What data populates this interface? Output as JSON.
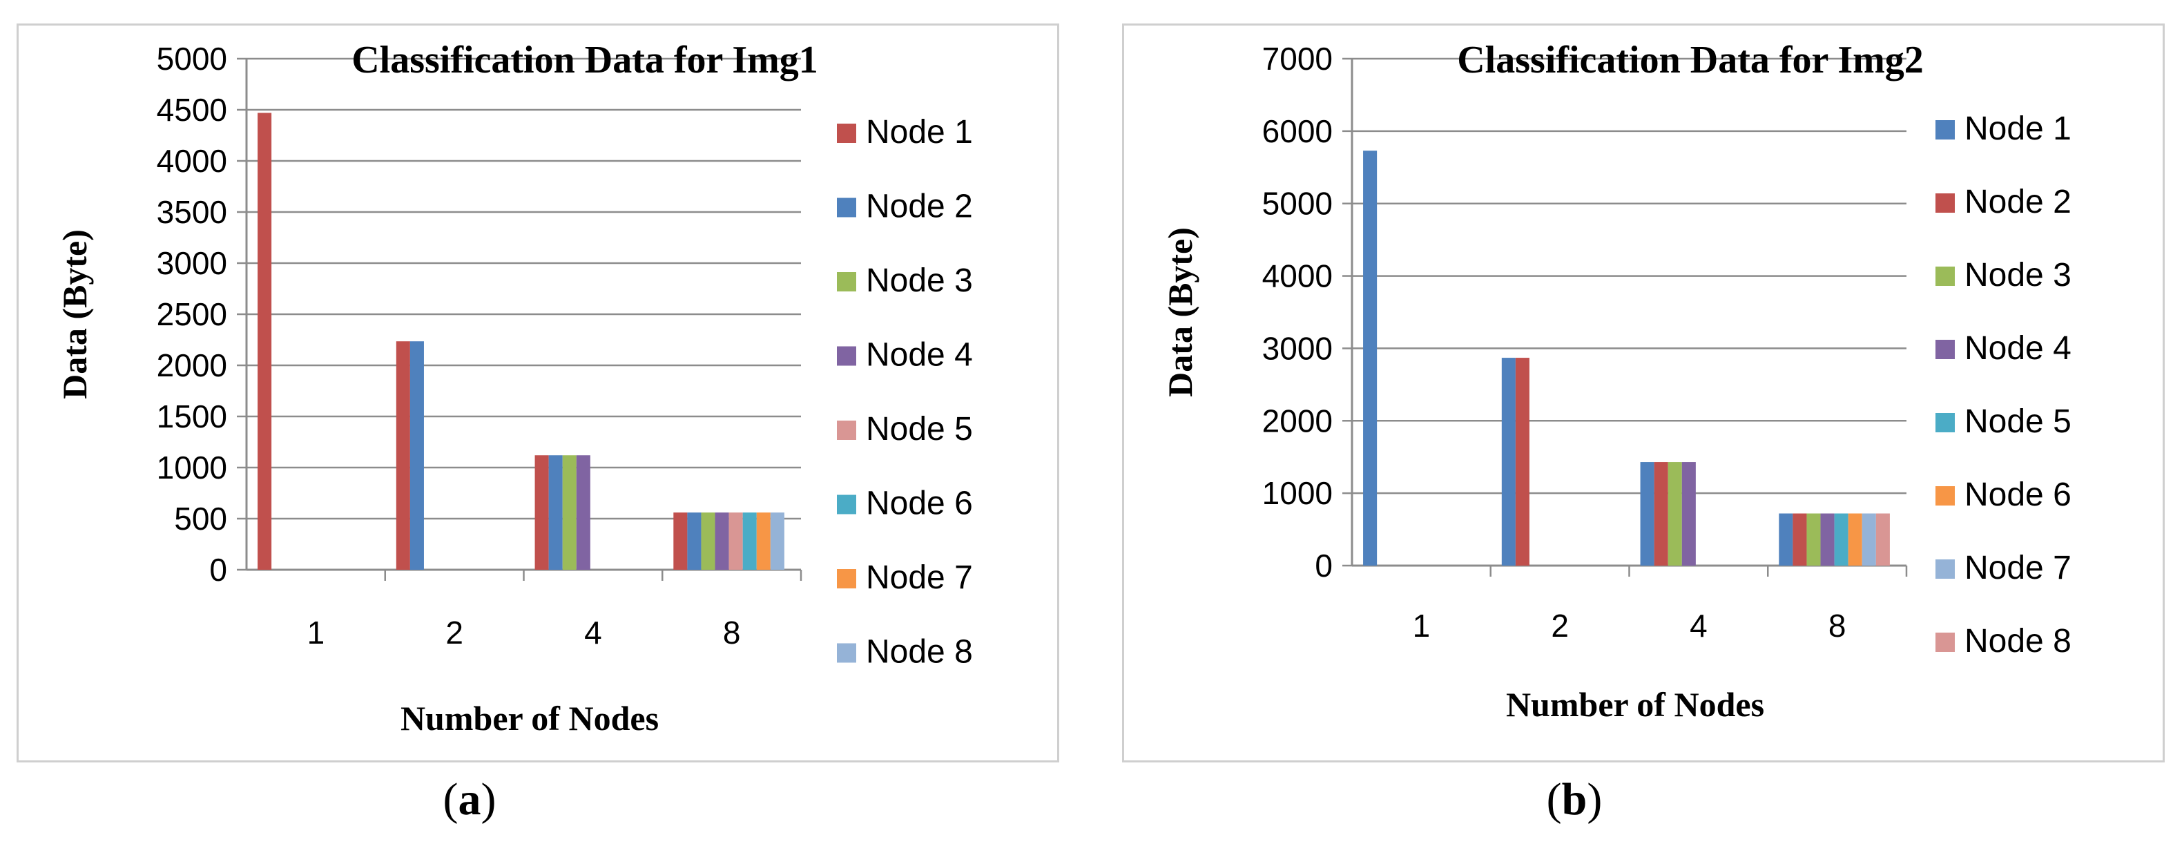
{
  "captions": {
    "a": {
      "open": "(",
      "letter": "a",
      "close": ")"
    },
    "b": {
      "open": "(",
      "letter": "b",
      "close": ")"
    }
  },
  "colors": {
    "red": "#C0504D",
    "blue": "#4F81BD",
    "green": "#9BBB59",
    "purple": "#8064A2",
    "pink": "#D99694",
    "teal": "#4BACC6",
    "orange": "#F79646",
    "lightblue": "#95B3D7"
  },
  "chart_data": [
    {
      "type": "bar",
      "title": "Classification Data for Img1",
      "xlabel": "Number of Nodes",
      "ylabel": "Data (Byte)",
      "ylim": [
        0,
        5000
      ],
      "yticks": [
        0,
        500,
        1000,
        1500,
        2000,
        2500,
        3000,
        3500,
        4000,
        4500,
        5000
      ],
      "grid": true,
      "legend": "right",
      "categories": [
        "1",
        "2",
        "4",
        "8"
      ],
      "series": [
        {
          "name": "Node 1",
          "color": "#C0504D",
          "values": [
            4470,
            2235,
            1120,
            560
          ]
        },
        {
          "name": "Node 2",
          "color": "#4F81BD",
          "values": [
            0,
            2235,
            1120,
            560
          ]
        },
        {
          "name": "Node 3",
          "color": "#9BBB59",
          "values": [
            0,
            0,
            1120,
            560
          ]
        },
        {
          "name": "Node 4",
          "color": "#8064A2",
          "values": [
            0,
            0,
            1120,
            560
          ]
        },
        {
          "name": "Node 5",
          "color": "#D99694",
          "values": [
            0,
            0,
            0,
            560
          ]
        },
        {
          "name": "Node 6",
          "color": "#4BACC6",
          "values": [
            0,
            0,
            0,
            560
          ]
        },
        {
          "name": "Node 7",
          "color": "#F79646",
          "values": [
            0,
            0,
            0,
            560
          ]
        },
        {
          "name": "Node 8",
          "color": "#95B3D7",
          "values": [
            0,
            0,
            0,
            560
          ]
        }
      ]
    },
    {
      "type": "bar",
      "title": "Classification Data for Img2",
      "xlabel": "Number of Nodes",
      "ylabel": "Data (Byte)",
      "ylim": [
        0,
        7000
      ],
      "yticks": [
        0,
        1000,
        2000,
        3000,
        4000,
        5000,
        6000,
        7000
      ],
      "grid": true,
      "legend": "right",
      "categories": [
        "1",
        "2",
        "4",
        "8"
      ],
      "series": [
        {
          "name": "Node 1",
          "color": "#4F81BD",
          "values": [
            5730,
            2870,
            1430,
            720
          ]
        },
        {
          "name": "Node 2",
          "color": "#C0504D",
          "values": [
            0,
            2870,
            1430,
            720
          ]
        },
        {
          "name": "Node 3",
          "color": "#9BBB59",
          "values": [
            0,
            0,
            1430,
            720
          ]
        },
        {
          "name": "Node 4",
          "color": "#8064A2",
          "values": [
            0,
            0,
            1430,
            720
          ]
        },
        {
          "name": "Node 5",
          "color": "#4BACC6",
          "values": [
            0,
            0,
            0,
            720
          ]
        },
        {
          "name": "Node 6",
          "color": "#F79646",
          "values": [
            0,
            0,
            0,
            720
          ]
        },
        {
          "name": "Node 7",
          "color": "#95B3D7",
          "values": [
            0,
            0,
            0,
            720
          ]
        },
        {
          "name": "Node 8",
          "color": "#D99694",
          "values": [
            0,
            0,
            0,
            720
          ]
        }
      ]
    }
  ]
}
